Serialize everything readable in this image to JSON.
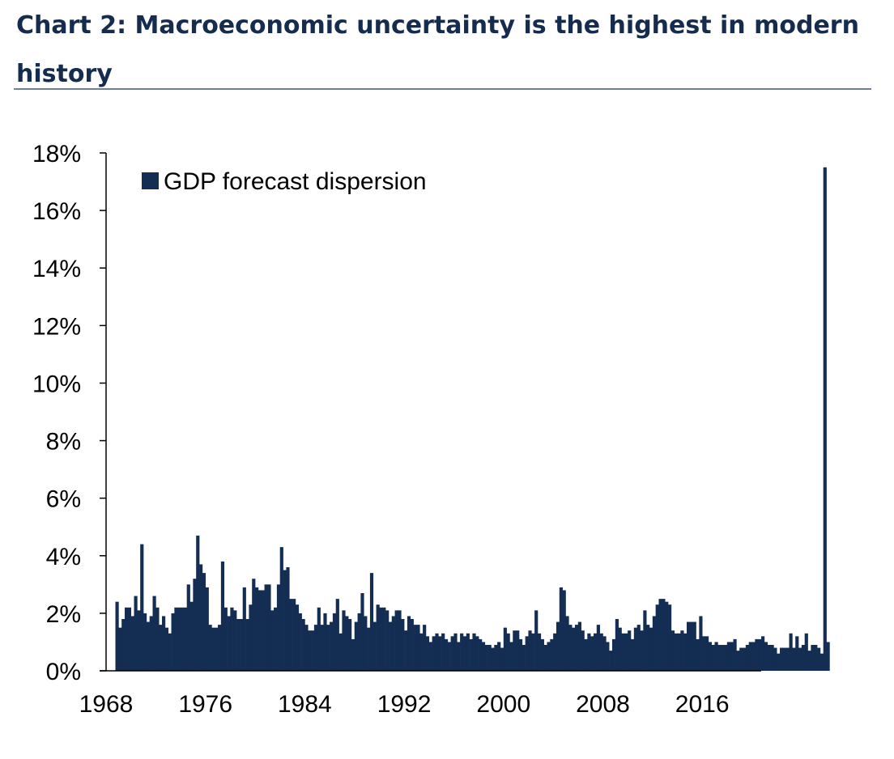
{
  "header": {
    "title": "Chart 2: Macroeconomic uncertainty is the highest in modern history"
  },
  "colors": {
    "bar": "#142d52",
    "title": "#152c4e",
    "rule": "#6f7f95"
  },
  "chart_data": {
    "type": "bar",
    "title": "Chart 2: Macroeconomic uncertainty is the highest in modern history",
    "xlabel": "",
    "ylabel": "",
    "ylim": [
      0,
      18
    ],
    "y_ticks": [
      "0%",
      "2%",
      "4%",
      "6%",
      "8%",
      "10%",
      "12%",
      "14%",
      "16%",
      "18%"
    ],
    "x_ticks": [
      "1968",
      "1976",
      "1984",
      "1992",
      "2000",
      "2008",
      "2016"
    ],
    "x_tick_values": [
      1968,
      1976,
      1984,
      1992,
      2000,
      2008,
      2016
    ],
    "x_range": [
      1968,
      2020.75
    ],
    "legend": {
      "position": "top-left",
      "entries": [
        "GDP forecast dispersion"
      ]
    },
    "grid": false,
    "series": [
      {
        "name": "GDP forecast dispersion",
        "x_start": 1968.75,
        "x_step": 0.25,
        "values": [
          2.4,
          1.5,
          1.8,
          2.2,
          2.2,
          1.9,
          2.6,
          2.1,
          4.4,
          2.0,
          1.7,
          1.9,
          2.6,
          2.2,
          1.6,
          1.9,
          1.5,
          1.3,
          2.0,
          2.2,
          2.2,
          2.2,
          2.2,
          3.0,
          2.4,
          3.2,
          4.7,
          3.7,
          3.4,
          2.9,
          1.6,
          1.5,
          1.5,
          1.6,
          3.8,
          2.2,
          1.9,
          2.2,
          2.1,
          1.8,
          1.8,
          2.9,
          1.8,
          2.3,
          3.2,
          2.9,
          2.8,
          2.8,
          3.0,
          3.0,
          2.1,
          2.2,
          3.0,
          4.3,
          3.5,
          3.6,
          2.5,
          2.5,
          2.3,
          2.0,
          1.8,
          1.6,
          1.4,
          1.4,
          1.6,
          2.2,
          1.6,
          2.0,
          1.6,
          1.7,
          2.0,
          2.5,
          1.3,
          2.1,
          1.9,
          1.8,
          1.1,
          1.7,
          2.0,
          2.7,
          1.9,
          1.5,
          3.4,
          1.7,
          2.3,
          2.2,
          2.2,
          2.1,
          1.7,
          1.9,
          2.1,
          2.1,
          1.8,
          1.4,
          1.9,
          1.8,
          1.6,
          1.6,
          1.3,
          1.6,
          1.2,
          1.0,
          1.2,
          1.3,
          1.2,
          1.3,
          1.1,
          1.0,
          1.2,
          1.3,
          1.0,
          1.3,
          1.2,
          1.3,
          1.1,
          1.3,
          1.2,
          1.1,
          1.0,
          0.9,
          0.9,
          0.8,
          0.9,
          1.0,
          0.8,
          1.5,
          1.3,
          1.0,
          1.4,
          1.4,
          1.1,
          0.9,
          1.2,
          1.4,
          1.3,
          2.1,
          1.3,
          1.1,
          0.9,
          1.0,
          1.1,
          1.3,
          1.7,
          2.9,
          2.8,
          1.9,
          1.6,
          1.5,
          1.6,
          1.7,
          1.4,
          1.1,
          1.3,
          1.2,
          1.3,
          1.6,
          1.3,
          1.2,
          1.0,
          0.7,
          1.1,
          1.8,
          1.5,
          1.3,
          1.3,
          1.4,
          1.1,
          1.5,
          1.6,
          1.4,
          2.1,
          1.6,
          1.5,
          1.9,
          2.3,
          2.5,
          2.5,
          2.4,
          2.3,
          1.4,
          1.3,
          1.3,
          1.4,
          1.3,
          1.7,
          1.7,
          1.7,
          1.1,
          1.9,
          1.2,
          1.2,
          1.0,
          0.9,
          1.0,
          0.9,
          0.9,
          0.9,
          1.0,
          1.0,
          1.1,
          0.7,
          0.8,
          0.8,
          0.9,
          1.0,
          1.0,
          1.1,
          1.1,
          1.2,
          1.0,
          0.9,
          0.9,
          0.8,
          0.6,
          0.8,
          0.8,
          0.8,
          1.3,
          0.8,
          1.2,
          0.8,
          0.9,
          1.3,
          0.7,
          0.9,
          0.9,
          0.8,
          0.6,
          17.5,
          1.0
        ]
      }
    ]
  }
}
